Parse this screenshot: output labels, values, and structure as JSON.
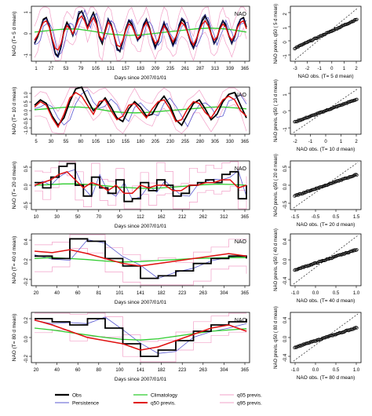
{
  "legend": {
    "items": [
      {
        "label": "Obs",
        "color": "#000000",
        "width": 2.2
      },
      {
        "label": "Persistence",
        "color": "#5a5ad2",
        "width": 1
      },
      {
        "label": "Climatology",
        "color": "#2ecc2e",
        "width": 1.2
      },
      {
        "label": "q50 previs.",
        "color": "#e01010",
        "width": 2
      },
      {
        "label": "q05 previs.",
        "color": "#f2a0c8",
        "width": 1
      },
      {
        "label": "q95 previs.",
        "color": "#f2a0c8",
        "width": 1
      }
    ]
  },
  "colors": {
    "obs": "#000000",
    "persistence": "#5a5ad2",
    "climatology": "#2ecc2e",
    "q50": "#e01010",
    "q05": "#f2a0c8",
    "q95": "#f2a0c8",
    "navy_line": "#1a1a6e"
  },
  "chart_data": [
    {
      "type": "line",
      "panel_label": "NAO",
      "xlabel": "Days since 2007/01/01",
      "ylabel": "NAO (T= 5 d mean)",
      "xticks": [
        "1",
        "27",
        "53",
        "79",
        "105",
        "131",
        "157",
        "183",
        "209",
        "235",
        "261",
        "287",
        "313",
        "339",
        "365"
      ],
      "yticks": [
        "-1",
        "0",
        "1"
      ],
      "ylim": [
        -1.7,
        1.7
      ],
      "series": [
        {
          "name": "Obs",
          "values": [
            -0.6,
            -0.2,
            0.3,
            0.9,
            1.0,
            0.5,
            -0.4,
            -1.2,
            -1.4,
            -0.8,
            0.2,
            0.7,
            0.4,
            -0.1,
            0.5,
            1.2,
            1.4,
            1.0,
            0.4,
            0.9,
            1.3,
            0.8,
            -0.2,
            -0.6,
            0.2,
            0.9,
            0.6,
            -0.1,
            -0.9,
            -1.1,
            -0.5,
            0.3,
            0.8,
            0.6,
            0.1,
            -0.4,
            -0.2,
            0.5,
            0.9,
            0.4,
            -0.3,
            -0.8,
            -0.5,
            0.2,
            0.6,
            0.3,
            -0.2,
            -0.7,
            -0.3,
            0.4,
            0.9,
            0.7,
            0.1,
            -0.5,
            -0.9,
            -0.4,
            0.3,
            0.8,
            1.1,
            0.7,
            0.0,
            -0.6,
            -0.3,
            0.4,
            0.8,
            0.5,
            -0.1,
            -0.6,
            -0.2,
            0.5,
            0.9,
            1.0,
            0.4
          ]
        },
        {
          "name": "q50 previs.",
          "values": [
            -0.4,
            -0.1,
            0.3,
            0.7,
            0.8,
            0.4,
            -0.3,
            -0.9,
            -1.0,
            -0.6,
            0.1,
            0.5,
            0.3,
            0.0,
            0.4,
            0.9,
            1.1,
            0.8,
            0.3,
            0.7,
            1.0,
            0.6,
            -0.1,
            -0.4,
            0.1,
            0.7,
            0.5,
            -0.1,
            -0.7,
            -0.8,
            -0.4,
            0.2,
            0.6,
            0.5,
            0.1,
            -0.3,
            -0.1,
            0.4,
            0.7,
            0.3,
            -0.2,
            -0.6,
            -0.4,
            0.1,
            0.5,
            0.2,
            -0.1,
            -0.5,
            -0.2,
            0.3,
            0.7,
            0.5,
            0.1,
            -0.4,
            -0.7,
            -0.3,
            0.2,
            0.6,
            0.8,
            0.5,
            0.0,
            -0.4,
            -0.2,
            0.3,
            0.6,
            0.4,
            -0.1,
            -0.4,
            -0.1,
            0.4,
            0.7,
            0.8,
            0.3
          ]
        },
        {
          "name": "Climatology",
          "values": [
            0.1,
            0.15,
            0.2,
            0.25,
            0.28,
            0.3,
            0.28,
            0.22,
            0.15,
            0.08,
            0.0,
            -0.05,
            -0.08,
            -0.1,
            -0.08,
            -0.05,
            0.0,
            0.05,
            0.1,
            0.15,
            0.2,
            0.25,
            0.3,
            0.33,
            0.35,
            0.33,
            0.3,
            0.25,
            0.18,
            0.1
          ]
        }
      ]
    },
    {
      "type": "line",
      "panel_label": "NAO",
      "xlabel": "",
      "ylabel": "NAO (T= 10 d mean)",
      "xticks": [
        "5",
        "30",
        "55",
        "80",
        "105",
        "130",
        "155",
        "180",
        "205",
        "230",
        "255",
        "280",
        "305",
        "330",
        "365"
      ],
      "yticks": [
        "-1.0",
        "-0.5",
        "0.0",
        "0.5",
        "1.0"
      ],
      "ylim": [
        -1.3,
        1.3
      ],
      "series": [
        {
          "name": "Obs",
          "values": [
            0.3,
            0.6,
            0.4,
            -0.3,
            -0.8,
            -0.4,
            0.5,
            1.2,
            1.3,
            0.6,
            0.0,
            0.3,
            0.7,
            0.2,
            -0.4,
            -0.6,
            0.1,
            0.5,
            0.2,
            -0.3,
            -0.2,
            0.4,
            0.8,
            0.3,
            -0.5,
            -0.8,
            -0.2,
            0.4,
            0.6,
            0.1,
            -0.5,
            -0.2,
            0.5,
            0.9,
            1.0,
            0.3,
            -0.4
          ]
        },
        {
          "name": "q50 previs.",
          "values": [
            0.2,
            0.5,
            0.3,
            -0.4,
            -0.9,
            -0.2,
            0.7,
            1.0,
            0.8,
            0.3,
            -0.2,
            0.5,
            0.6,
            0.0,
            -0.5,
            -0.3,
            0.3,
            0.4,
            0.0,
            -0.4,
            0.1,
            0.5,
            0.6,
            0.1,
            -0.6,
            -0.5,
            0.1,
            0.5,
            0.4,
            -0.1,
            -0.4,
            0.1,
            0.6,
            0.8,
            0.6,
            0.0,
            -0.3
          ]
        },
        {
          "name": "Climatology",
          "values": [
            0.05,
            0.1,
            0.15,
            0.2,
            0.2,
            0.15,
            0.05,
            -0.05,
            -0.1,
            -0.12,
            -0.1,
            -0.05,
            0.0,
            0.05,
            0.1,
            0.15,
            0.2,
            0.2,
            0.15,
            0.1
          ]
        }
      ]
    },
    {
      "type": "line",
      "panel_label": "NAO",
      "xlabel": "Days since 2007/01/01",
      "ylabel": "NAO (T= 20 d mean)",
      "xticks": [
        "10",
        "30",
        "50",
        "70",
        "90",
        "112",
        "162",
        "212",
        "262",
        "312",
        "365"
      ],
      "yticks": [
        "-0.5",
        "0.0",
        "0.5"
      ],
      "ylim": [
        -0.8,
        1.0
      ],
      "series": [
        {
          "name": "Obs",
          "values": [
            0.2,
            0.0,
            0.4,
            0.8,
            0.9,
            0.1,
            -0.3,
            0.4,
            0.0,
            -0.2,
            0.3,
            -0.5,
            -0.4,
            0.2,
            -0.1,
            0.3,
            0.1,
            -0.3,
            -0.2,
            0.1,
            0.2,
            0.3,
            0.2,
            0.5,
            0.6,
            -0.4,
            0.1
          ]
        },
        {
          "name": "q50 previs.",
          "values": [
            0.1,
            0.2,
            0.3,
            0.5,
            0.6,
            0.3,
            0.0,
            0.2,
            0.1,
            -0.1,
            0.1,
            -0.2,
            -0.2,
            0.1,
            0.0,
            0.1,
            0.1,
            -0.1,
            -0.1,
            0.1,
            0.1,
            0.2,
            0.2,
            0.3,
            0.3,
            0.0,
            0.1
          ]
        },
        {
          "name": "Climatology",
          "values": [
            0.1,
            0.12,
            0.15,
            0.15,
            0.12,
            0.08,
            0.03,
            0.0,
            -0.02,
            0.0,
            0.04,
            0.08,
            0.12,
            0.14,
            0.13,
            0.1
          ]
        }
      ]
    },
    {
      "type": "line",
      "panel_label": "NAO",
      "xlabel": "Days since 2007/01/01",
      "ylabel": "NAO (T= 40 d mean)",
      "xticks": [
        "20",
        "40",
        "60",
        "81",
        "101",
        "141",
        "182",
        "223",
        "263",
        "304",
        "365"
      ],
      "yticks": [
        "-0.2",
        "0.2",
        "0.4"
      ],
      "ylim": [
        -0.45,
        0.6
      ],
      "series": [
        {
          "name": "Obs",
          "values": [
            0.15,
            0.1,
            0.5,
            0.45,
            0.1,
            -0.05,
            -0.3,
            -0.25,
            -0.15,
            0.0,
            0.1,
            0.15,
            0.1
          ]
        },
        {
          "name": "q50 previs.",
          "values": [
            0.25,
            0.22,
            0.28,
            0.2,
            0.1,
            0.0,
            -0.05,
            0.0,
            0.05,
            0.1,
            0.15,
            0.2,
            0.15
          ]
        },
        {
          "name": "Climatology",
          "values": [
            0.1,
            0.12,
            0.1,
            0.08,
            0.05,
            0.03,
            0.04,
            0.06,
            0.08,
            0.1,
            0.11,
            0.12,
            0.12
          ]
        }
      ]
    },
    {
      "type": "line",
      "panel_label": "NAO",
      "xlabel": "Days since 2007/01/01",
      "ylabel": "NAO (T= 80 d mean)",
      "xticks": [
        "20",
        "40",
        "60",
        "80",
        "100",
        "141",
        "182",
        "223",
        "263",
        "304",
        "365"
      ],
      "yticks": [
        "-0.2",
        "0.0",
        "0.2"
      ],
      "ylim": [
        -0.4,
        0.4
      ],
      "series": [
        {
          "name": "Obs",
          "values": [
            0.3,
            0.25,
            0.2,
            0.3,
            0.15,
            -0.1,
            -0.3,
            -0.2,
            -0.05,
            0.1,
            0.2,
            0.25,
            0.3
          ]
        },
        {
          "name": "q50 previs.",
          "values": [
            0.28,
            0.2,
            0.1,
            0.0,
            -0.05,
            -0.1,
            -0.2,
            -0.15,
            -0.05,
            0.05,
            0.15,
            0.2,
            0.1
          ]
        },
        {
          "name": "Climatology",
          "values": [
            0.15,
            0.12,
            0.08,
            0.04,
            0.0,
            -0.03,
            -0.04,
            -0.02,
            0.02,
            0.06,
            0.1,
            0.12,
            0.14
          ]
        }
      ]
    },
    {
      "type": "scatter",
      "xlabel": "NAO obs.  (T= 5 d mean)",
      "ylabel": "NAO previs. q50 ( 5 d mean)",
      "xticks": [
        "-3",
        "-2",
        "-1",
        "0",
        "1",
        "2"
      ],
      "yticks": [
        "-1",
        "0",
        "1",
        "2"
      ],
      "xlim": [
        -3,
        2.2
      ],
      "ylim": [
        -1.6,
        2.2
      ]
    },
    {
      "type": "scatter",
      "xlabel": "NAO obs.  (T= 10 d mean)",
      "ylabel": "NAO previs. q50 ( 10 d mean)",
      "xticks": [
        "-2",
        "-1",
        "0",
        "1",
        "2"
      ],
      "yticks": [
        "-1",
        "0",
        "1"
      ],
      "xlim": [
        -2.5,
        2.3
      ],
      "ylim": [
        -1.6,
        1.6
      ]
    },
    {
      "type": "scatter",
      "xlabel": "NAO obs.  (T= 20 d mean)",
      "ylabel": "NAO previs. q50 ( 20 d mean)",
      "xticks": [
        "-1.5",
        "-0.5",
        "0.5",
        "1.5"
      ],
      "yticks": [
        "-0.5",
        "0.0",
        "0.5"
      ],
      "xlim": [
        -1.8,
        1.8
      ],
      "ylim": [
        -0.8,
        0.8
      ]
    },
    {
      "type": "scatter",
      "xlabel": "NAO obs.  (T= 40 d mean)",
      "ylabel": "NAO previs. q50 ( 40 d mean)",
      "xticks": [
        "-1.0",
        "0.0",
        "0.5",
        "1.0"
      ],
      "yticks": [
        "-0.4",
        "0.0",
        "0.4"
      ],
      "xlim": [
        -1.2,
        1.2
      ],
      "ylim": [
        -0.6,
        0.6
      ]
    },
    {
      "type": "scatter",
      "xlabel": "NAO obs.  (T= 80 d mean)",
      "ylabel": "NAO previs. q50 ( 80 d mean)",
      "xticks": [
        "-1.0",
        "0.0",
        "0.5",
        "1.0"
      ],
      "yticks": [
        "-0.4",
        "0.0",
        "0.4"
      ],
      "xlim": [
        -1.2,
        1.2
      ],
      "ylim": [
        -0.6,
        0.6
      ]
    }
  ]
}
